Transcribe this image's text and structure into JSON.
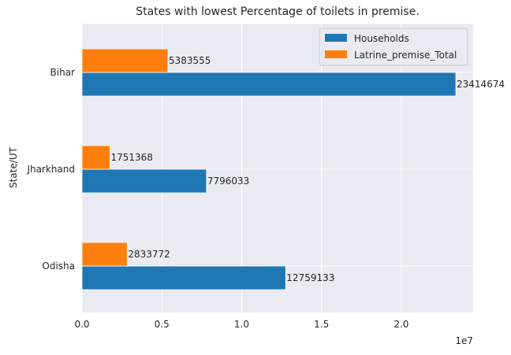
{
  "chart_data": {
    "type": "bar",
    "orientation": "horizontal",
    "title": "States with lowest Percentage of toilets in premise.",
    "xlabel": "",
    "ylabel": "State/UT",
    "x_offset_label": "1e7",
    "xlim": [
      0,
      24500000
    ],
    "x_ticks": [
      0,
      5000000,
      10000000,
      15000000,
      20000000
    ],
    "x_tick_labels": [
      "0.0",
      "0.5",
      "1.0",
      "1.5",
      "2.0"
    ],
    "categories": [
      "Bihar",
      "Jharkhand",
      "Odisha"
    ],
    "series": [
      {
        "name": "Households",
        "color": "#1f77b4",
        "values": [
          23414674,
          7796033,
          12759133
        ]
      },
      {
        "name": "Latrine_premise_Total",
        "color": "#ff7f0e",
        "values": [
          5383555,
          1751368,
          2833772
        ]
      }
    ],
    "grid": true,
    "legend_position": "top-right"
  }
}
